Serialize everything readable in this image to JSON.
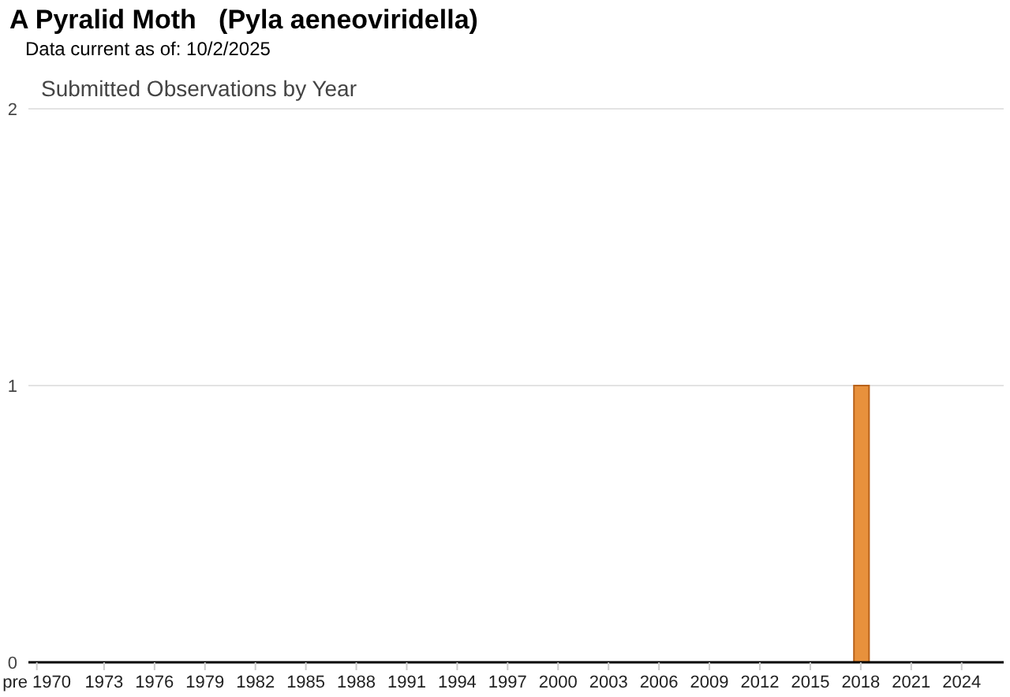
{
  "chart_data": {
    "type": "bar",
    "title": "A Pyralid Moth   (Pyla aeneoviridella)",
    "subtitle": "Data current as of: 10/2/2025",
    "annotations": [
      "Submitted Observations by Year"
    ],
    "categories": [
      "pre 1970",
      null,
      null,
      null,
      "1973",
      null,
      null,
      "1976",
      null,
      null,
      "1979",
      null,
      null,
      "1982",
      null,
      null,
      "1985",
      null,
      null,
      "1988",
      null,
      null,
      "1991",
      null,
      null,
      "1994",
      null,
      null,
      "1997",
      null,
      null,
      "2000",
      null,
      null,
      "2003",
      null,
      null,
      "2006",
      null,
      null,
      "2009",
      null,
      null,
      "2012",
      null,
      null,
      "2015",
      null,
      null,
      "2018",
      null,
      null,
      "2021",
      null,
      null,
      "2024",
      null,
      null
    ],
    "values": [
      0,
      0,
      0,
      0,
      0,
      0,
      0,
      0,
      0,
      0,
      0,
      0,
      0,
      0,
      0,
      0,
      0,
      0,
      0,
      0,
      0,
      0,
      0,
      0,
      0,
      0,
      0,
      0,
      0,
      0,
      0,
      0,
      0,
      0,
      0,
      0,
      0,
      0,
      0,
      0,
      0,
      0,
      0,
      0,
      0,
      0,
      0,
      0,
      0,
      1,
      0,
      0,
      0,
      0,
      0,
      0,
      0,
      0
    ],
    "color": "#e8913c",
    "ylim": [
      0,
      2
    ],
    "yticks": [
      0,
      1,
      2
    ],
    "grid": "y"
  }
}
